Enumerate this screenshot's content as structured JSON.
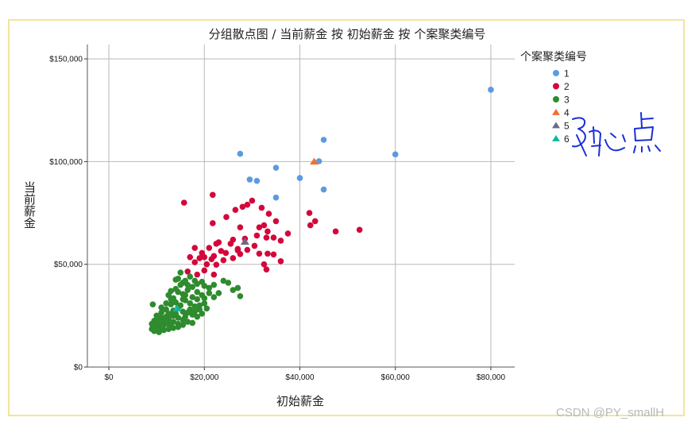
{
  "watermark": "CSDN @PY_smallH",
  "annotation_handwritten": "质心点",
  "colors": {
    "1": "#5b9bdf",
    "2": "#d4073a",
    "3": "#2e8b2e",
    "4": "#f07032",
    "5": "#6e6a82",
    "6": "#10b8a0",
    "grid": "#b9b9b9",
    "frame": "#f3e59a"
  },
  "chart_data": {
    "type": "scatter",
    "title": "分组散点图 / 当前薪金 按 初始薪金 按 个案聚类编号",
    "xlabel": "初始薪金",
    "ylabel": "当前薪金",
    "xlim": [
      -4500,
      85000
    ],
    "ylim": [
      0,
      157000
    ],
    "x_ticks": [
      0,
      20000,
      40000,
      60000,
      80000
    ],
    "x_tick_labels": [
      "$0",
      "$20,000",
      "$40,000",
      "$60,000",
      "$80,000"
    ],
    "y_ticks": [
      0,
      50000,
      100000,
      150000
    ],
    "y_tick_labels": [
      "$0",
      "$50,000",
      "$100,000",
      "$150,000"
    ],
    "grid": true,
    "legend": {
      "title": "个案聚类编号",
      "placement": "right",
      "entries": [
        "1",
        "2",
        "3",
        "4",
        "5",
        "6"
      ]
    },
    "series": [
      {
        "name": "1",
        "marker": "circle",
        "points": [
          [
            80000,
            135000
          ],
          [
            45000,
            110600
          ],
          [
            27500,
            103800
          ],
          [
            60000,
            103500
          ],
          [
            44000,
            100200
          ],
          [
            35000,
            97000
          ],
          [
            29500,
            91300
          ],
          [
            31000,
            90600
          ],
          [
            40000,
            92000
          ],
          [
            45000,
            86400
          ],
          [
            35000,
            82500
          ]
        ]
      },
      {
        "name": "2",
        "marker": "circle",
        "points": [
          [
            15750,
            80000
          ],
          [
            21750,
            83800
          ],
          [
            30000,
            81000
          ],
          [
            28000,
            78000
          ],
          [
            29000,
            79000
          ],
          [
            32000,
            77500
          ],
          [
            26500,
            76500
          ],
          [
            33500,
            74600
          ],
          [
            24600,
            73000
          ],
          [
            42000,
            75000
          ],
          [
            43200,
            71000
          ],
          [
            42200,
            69000
          ],
          [
            35000,
            71000
          ],
          [
            21750,
            70000
          ],
          [
            32500,
            69000
          ],
          [
            31500,
            68000
          ],
          [
            33250,
            66000
          ],
          [
            47500,
            66000
          ],
          [
            52500,
            66800
          ],
          [
            37500,
            65000
          ],
          [
            27500,
            68000
          ],
          [
            31000,
            64000
          ],
          [
            33000,
            63000
          ],
          [
            34500,
            63000
          ],
          [
            36000,
            61500
          ],
          [
            26000,
            62000
          ],
          [
            28500,
            62500
          ],
          [
            30500,
            59000
          ],
          [
            23000,
            60700
          ],
          [
            25500,
            60000
          ],
          [
            29000,
            57000
          ],
          [
            27000,
            56800
          ],
          [
            22500,
            60000
          ],
          [
            21000,
            58000
          ],
          [
            18000,
            58000
          ],
          [
            19500,
            55500
          ],
          [
            20000,
            53500
          ],
          [
            22000,
            54000
          ],
          [
            23500,
            56500
          ],
          [
            24500,
            55500
          ],
          [
            27500,
            55000
          ],
          [
            31500,
            55200
          ],
          [
            33250,
            55200
          ],
          [
            34500,
            54800
          ],
          [
            36000,
            51500
          ],
          [
            26000,
            53000
          ],
          [
            24000,
            52000
          ],
          [
            21500,
            52500
          ],
          [
            19000,
            53000
          ],
          [
            17000,
            53500
          ],
          [
            18000,
            51000
          ],
          [
            20500,
            50000
          ],
          [
            22500,
            49800
          ],
          [
            20000,
            47000
          ],
          [
            18500,
            45000
          ],
          [
            16500,
            46500
          ],
          [
            22000,
            45000
          ],
          [
            32500,
            50000
          ],
          [
            33000,
            47500
          ],
          [
            27000,
            57500
          ]
        ]
      },
      {
        "name": "3",
        "marker": "circle",
        "points": [
          [
            14000,
            42500
          ],
          [
            15500,
            41000
          ],
          [
            16500,
            40000
          ],
          [
            17500,
            39000
          ],
          [
            18500,
            40500
          ],
          [
            19500,
            41500
          ],
          [
            20000,
            39500
          ],
          [
            21000,
            38500
          ],
          [
            22000,
            40000
          ],
          [
            23000,
            36000
          ],
          [
            24000,
            42000
          ],
          [
            25000,
            41000
          ],
          [
            26000,
            37500
          ],
          [
            27000,
            38500
          ],
          [
            27500,
            34500
          ],
          [
            13000,
            37000
          ],
          [
            12500,
            35000
          ],
          [
            13500,
            33500
          ],
          [
            14500,
            36500
          ],
          [
            15500,
            35500
          ],
          [
            16500,
            37500
          ],
          [
            17500,
            34000
          ],
          [
            18500,
            33000
          ],
          [
            19500,
            35000
          ],
          [
            13000,
            30500
          ],
          [
            14000,
            31500
          ],
          [
            15000,
            30000
          ],
          [
            16000,
            32500
          ],
          [
            17000,
            31000
          ],
          [
            18000,
            29500
          ],
          [
            19000,
            28000
          ],
          [
            20000,
            31000
          ],
          [
            11000,
            29000
          ],
          [
            12000,
            28000
          ],
          [
            12500,
            26000
          ],
          [
            13500,
            27500
          ],
          [
            14500,
            29000
          ],
          [
            15500,
            27000
          ],
          [
            16500,
            26500
          ],
          [
            17500,
            25500
          ],
          [
            18500,
            24500
          ],
          [
            19500,
            26000
          ],
          [
            10000,
            25000
          ],
          [
            11000,
            24000
          ],
          [
            11500,
            22500
          ],
          [
            12500,
            23500
          ],
          [
            13500,
            25000
          ],
          [
            14500,
            24000
          ],
          [
            15500,
            23000
          ],
          [
            16500,
            22000
          ],
          [
            17500,
            21500
          ],
          [
            9000,
            21000
          ],
          [
            10000,
            20000
          ],
          [
            10500,
            19000
          ],
          [
            11500,
            20500
          ],
          [
            12500,
            21000
          ],
          [
            13500,
            22000
          ],
          [
            14500,
            21000
          ],
          [
            15500,
            20500
          ],
          [
            9000,
            18500
          ],
          [
            9500,
            17500
          ],
          [
            10500,
            17000
          ],
          [
            11500,
            18000
          ],
          [
            12500,
            18500
          ],
          [
            13500,
            19000
          ],
          [
            14500,
            19500
          ],
          [
            9500,
            22500
          ],
          [
            10500,
            23000
          ],
          [
            11000,
            26500
          ],
          [
            12000,
            31000
          ],
          [
            13000,
            33000
          ],
          [
            14000,
            38000
          ],
          [
            15000,
            40000
          ],
          [
            16000,
            42000
          ],
          [
            17000,
            44000
          ],
          [
            15000,
            46000
          ],
          [
            14500,
            43000
          ],
          [
            16000,
            35000
          ],
          [
            17000,
            28000
          ],
          [
            18000,
            27000
          ],
          [
            19000,
            30000
          ],
          [
            20000,
            33500
          ],
          [
            21000,
            36000
          ],
          [
            22000,
            34000
          ],
          [
            20500,
            28500
          ],
          [
            18500,
            36500
          ],
          [
            15500,
            33000
          ],
          [
            12000,
            24500
          ],
          [
            13000,
            20000
          ],
          [
            11000,
            21500
          ],
          [
            10000,
            22000
          ],
          [
            9200,
            30500
          ],
          [
            16000,
            24500
          ],
          [
            14000,
            26000
          ],
          [
            18000,
            42000
          ]
        ]
      },
      {
        "name": "4",
        "marker": "triangle",
        "points": [
          [
            43000,
            100000
          ]
        ]
      },
      {
        "name": "5",
        "marker": "triangle",
        "points": [
          [
            28500,
            61000
          ]
        ]
      },
      {
        "name": "6",
        "marker": "triangle",
        "points": [
          [
            14300,
            28500
          ]
        ]
      }
    ]
  }
}
